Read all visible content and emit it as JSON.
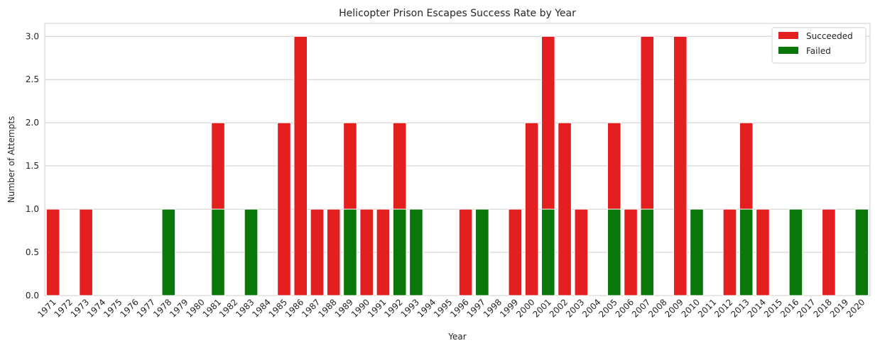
{
  "chart_data": {
    "type": "bar",
    "title": "Helicopter Prison Escapes Success Rate by Year",
    "xlabel": "Year",
    "ylabel": "Number of Attempts",
    "ylim": [
      0,
      3.15
    ],
    "yticks": [
      "0.0",
      "0.5",
      "1.0",
      "1.5",
      "2.0",
      "2.5",
      "3.0"
    ],
    "grid": true,
    "legend_position": "top-right",
    "categories": [
      "1971",
      "1972",
      "1973",
      "1974",
      "1975",
      "1976",
      "1977",
      "1978",
      "1979",
      "1980",
      "1981",
      "1982",
      "1983",
      "1984",
      "1985",
      "1986",
      "1987",
      "1988",
      "1989",
      "1990",
      "1991",
      "1992",
      "1993",
      "1994",
      "1995",
      "1996",
      "1997",
      "1998",
      "1999",
      "2000",
      "2001",
      "2002",
      "2003",
      "2004",
      "2005",
      "2006",
      "2007",
      "2008",
      "2009",
      "2010",
      "2011",
      "2012",
      "2013",
      "2014",
      "2015",
      "2016",
      "2017",
      "2018",
      "2019",
      "2020"
    ],
    "series": [
      {
        "name": "Succeeded",
        "color": "#e31f1f",
        "values": [
          1,
          0,
          1,
          0,
          0,
          0,
          0,
          0,
          0,
          0,
          2,
          0,
          0,
          0,
          2,
          3,
          1,
          1,
          2,
          1,
          1,
          2,
          0,
          0,
          0,
          1,
          0,
          0,
          1,
          2,
          3,
          2,
          1,
          0,
          2,
          1,
          3,
          0,
          3,
          0,
          0,
          1,
          2,
          1,
          0,
          0,
          0,
          1,
          0,
          0
        ]
      },
      {
        "name": "Failed",
        "color": "#0a770a",
        "values": [
          0,
          0,
          0,
          0,
          0,
          0,
          0,
          1,
          0,
          0,
          1,
          0,
          1,
          0,
          0,
          0,
          0,
          0,
          1,
          0,
          0,
          1,
          1,
          0,
          0,
          0,
          1,
          0,
          0,
          0,
          1,
          0,
          0,
          0,
          1,
          0,
          1,
          0,
          0,
          1,
          0,
          0,
          1,
          0,
          0,
          1,
          0,
          0,
          0,
          1
        ]
      }
    ]
  }
}
